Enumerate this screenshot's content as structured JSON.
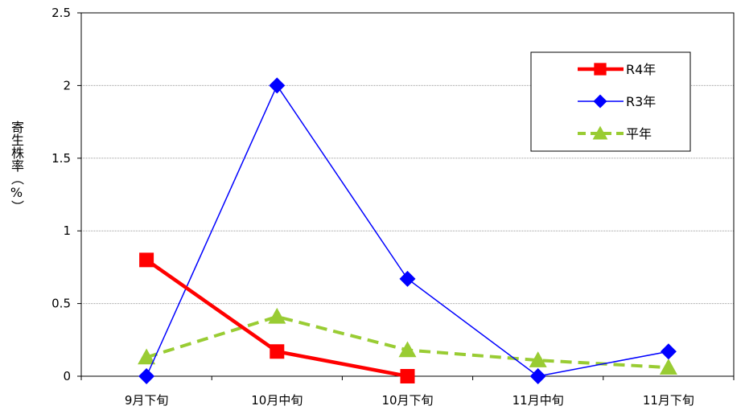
{
  "chart_data": {
    "type": "line",
    "title": "",
    "xlabel": "",
    "ylabel": "寄生株率（%）",
    "categories": [
      "9月下旬",
      "10月中旬",
      "10月下旬",
      "11月中旬",
      "11月下旬"
    ],
    "ylim": [
      0,
      2.5
    ],
    "yticks": [
      "0",
      "0.5",
      "1",
      "1.5",
      "2",
      "2.5"
    ],
    "grid": true,
    "legend_position": "top-right",
    "series": [
      {
        "name": "R4年",
        "values": [
          0.8,
          0.17,
          0,
          null,
          null
        ],
        "color": "#ff0000",
        "marker": "square",
        "dash": "solid"
      },
      {
        "name": "R3年",
        "values": [
          0,
          2,
          0.67,
          0,
          0.17
        ],
        "color": "#0000ff",
        "marker": "diamond",
        "dash": "solid"
      },
      {
        "name": "平年",
        "values": [
          0.13,
          0.41,
          0.18,
          0.11,
          0.06
        ],
        "color": "#99cc33",
        "marker": "triangle",
        "dash": "dashed"
      }
    ]
  }
}
